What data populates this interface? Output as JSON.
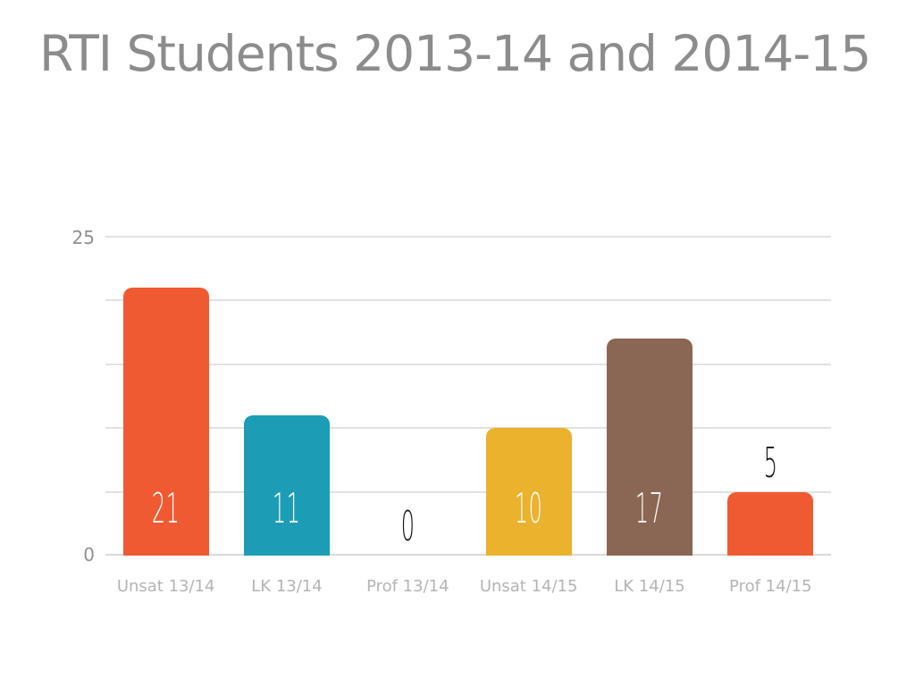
{
  "chart_data": {
    "type": "bar",
    "title": "RTI Students 2013-14 and 2014-15",
    "categories": [
      "Unsat 13/14",
      "LK 13/14",
      "Prof 13/14",
      "Unsat 14/15",
      "LK 14/15",
      "Prof 14/15"
    ],
    "values": [
      21,
      11,
      0,
      10,
      17,
      5
    ],
    "bar_colors": [
      "#F05A32",
      "#1C9DB5",
      null,
      "#EAB22D",
      "#8A6754",
      "#F05A32"
    ],
    "xlabel": "",
    "ylabel": "",
    "ylim": [
      0,
      25
    ],
    "gridline_step": 5,
    "grid": true,
    "legend_position": "none",
    "y_axis_tick_labels": [
      "25",
      "0"
    ],
    "value_labels_shown": true,
    "value_label_color_inside_bar": "#FFFFFF",
    "value_label_color_outside_bar": "#161616",
    "title_color": "#8C8C8C",
    "axis_tick_label_color": "#909090",
    "category_label_color": "#B4B4B4",
    "gridline_color": "#E1E1E1",
    "background_color": "#FFFFFF"
  }
}
